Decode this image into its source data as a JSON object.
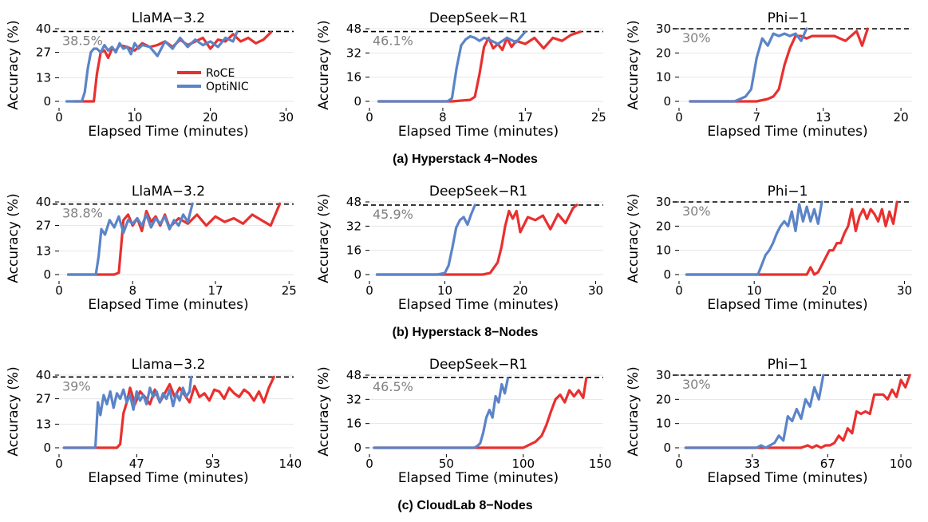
{
  "colors": {
    "roce": "#e8302f",
    "optinic": "#5b84c8",
    "target_line": "#000000",
    "target_label": "#808080",
    "grid": "#e6e6e6"
  },
  "legend": [
    "RoCE",
    "OptiNIC"
  ],
  "captions": [
    "(a) Hyperstack 4−Nodes",
    "(b) Hyperstack 8−Nodes",
    "(c) CloudLab 8−Nodes"
  ],
  "chart_data": [
    {
      "type": "line",
      "row": 0,
      "col": 0,
      "title": "LlaMA−3.2",
      "xlabel": "Elapsed Time (minutes)",
      "ylabel": "Accuracy (%)",
      "xlim": [
        0,
        31
      ],
      "ylim": [
        0,
        40
      ],
      "xticks": [
        0,
        10,
        20,
        30
      ],
      "yticks": [
        0,
        13,
        27,
        40
      ],
      "target": 38.5,
      "target_label": "38.5%",
      "series": [
        {
          "name": "RoCE",
          "x": [
            2,
            4,
            4.6,
            5,
            5.5,
            6,
            6.5,
            7,
            7.5,
            8,
            9,
            10,
            11,
            12,
            13,
            14,
            15,
            16,
            17,
            18,
            19,
            20,
            21,
            22,
            23,
            24,
            25,
            26,
            27,
            28
          ],
          "y": [
            0,
            0,
            0,
            15,
            27,
            28,
            24,
            29,
            28,
            31,
            30,
            28,
            32,
            30,
            31,
            33,
            30,
            34,
            31,
            33,
            35,
            29,
            34,
            33,
            37,
            33,
            35,
            32,
            34,
            38
          ]
        },
        {
          "name": "OptiNIC",
          "x": [
            1,
            2,
            3,
            3.4,
            3.8,
            4.2,
            4.6,
            5,
            5.5,
            6,
            6.5,
            7,
            7.5,
            8,
            8.5,
            9,
            9.5,
            10,
            10.5,
            11,
            12,
            13,
            14,
            15,
            16,
            17,
            18,
            19,
            20,
            21,
            22,
            23,
            23.5
          ],
          "y": [
            0,
            0,
            0,
            5,
            18,
            27,
            29,
            29,
            27,
            31,
            28,
            30,
            27,
            32,
            29,
            30,
            26,
            32,
            29,
            31,
            30,
            25,
            33,
            29,
            35,
            30,
            34,
            31,
            33,
            30,
            35,
            33,
            38
          ]
        }
      ]
    },
    {
      "type": "line",
      "row": 0,
      "col": 1,
      "title": "DeepSeek−R1",
      "xlabel": "Elapsed Time (minutes)",
      "ylabel": "Accuracy (%)",
      "xlim": [
        0,
        25.5
      ],
      "ylim": [
        0,
        48
      ],
      "xticks": [
        0,
        8,
        17,
        25
      ],
      "yticks": [
        0,
        16,
        32,
        48
      ],
      "target": 46.1,
      "target_label": "46.1%",
      "series": [
        {
          "name": "RoCE",
          "x": [
            1,
            6,
            9,
            11,
            11.5,
            12,
            12.5,
            13,
            13.5,
            14,
            14.5,
            15,
            15.5,
            16,
            17,
            18,
            19,
            20,
            21,
            22,
            23
          ],
          "y": [
            0,
            0,
            0,
            1,
            3,
            18,
            36,
            42,
            35,
            38,
            34,
            42,
            36,
            40,
            38,
            42,
            35,
            42,
            40,
            44,
            46
          ]
        },
        {
          "name": "OptiNIC",
          "x": [
            1,
            4,
            7,
            8.5,
            9,
            9.5,
            10,
            10.5,
            11,
            11.5,
            12,
            12.5,
            13,
            14,
            15,
            16,
            17
          ],
          "y": [
            0,
            0,
            0,
            0,
            2,
            22,
            37,
            41,
            43,
            42,
            40,
            42,
            41,
            38,
            42,
            39,
            46
          ]
        }
      ]
    },
    {
      "type": "line",
      "row": 0,
      "col": 2,
      "title": "Phi−1",
      "xlabel": "Elapsed Time (minutes)",
      "ylabel": "Accuracy (%)",
      "xlim": [
        0,
        21
      ],
      "ylim": [
        0,
        30
      ],
      "xticks": [
        0,
        7,
        13,
        20
      ],
      "yticks": [
        0,
        10,
        20,
        30
      ],
      "target": 30,
      "target_label": "30%",
      "series": [
        {
          "name": "RoCE",
          "x": [
            1,
            3,
            5,
            6,
            7,
            8,
            8.5,
            9,
            9.5,
            10,
            10.5,
            11,
            11.5,
            12,
            13,
            14,
            15,
            16,
            16.5,
            17
          ],
          "y": [
            0,
            0,
            0,
            0,
            0,
            1,
            2,
            5,
            15,
            22,
            27,
            27,
            26,
            27,
            27,
            27,
            25,
            29,
            23,
            30
          ]
        },
        {
          "name": "OptiNIC",
          "x": [
            1,
            3,
            5,
            5.5,
            6,
            6.5,
            7,
            7.5,
            8,
            8.5,
            9,
            9.5,
            10,
            10.5,
            11,
            11.5
          ],
          "y": [
            0,
            0,
            0,
            1,
            2,
            5,
            18,
            26,
            23,
            28,
            27,
            28,
            27,
            28,
            25,
            30
          ]
        }
      ]
    },
    {
      "type": "line",
      "row": 1,
      "col": 0,
      "title": "LlaMA−3.2",
      "xlabel": "Elapsed Time (minutes)",
      "ylabel": "Accuracy (%)",
      "xlim": [
        0,
        25.5
      ],
      "ylim": [
        0,
        40
      ],
      "xticks": [
        0,
        8,
        17,
        25
      ],
      "yticks": [
        0,
        13,
        27,
        40
      ],
      "target": 38.8,
      "target_label": "38.8%",
      "series": [
        {
          "name": "RoCE",
          "x": [
            1,
            4,
            6,
            6.5,
            7,
            7.5,
            8,
            8.5,
            9,
            9.5,
            10,
            10.5,
            11,
            11.5,
            12,
            13,
            14,
            15,
            16,
            17,
            18,
            19,
            20,
            21,
            22,
            23,
            24
          ],
          "y": [
            0,
            0,
            0,
            1,
            30,
            33,
            27,
            31,
            24,
            35,
            29,
            32,
            27,
            33,
            26,
            31,
            28,
            33,
            27,
            32,
            29,
            31,
            28,
            33,
            30,
            27,
            39
          ]
        },
        {
          "name": "OptiNIC",
          "x": [
            1,
            3,
            4,
            4.3,
            4.6,
            5,
            5.5,
            6,
            6.5,
            7,
            7.5,
            8,
            8.5,
            9,
            9.5,
            10,
            10.5,
            11,
            11.5,
            12,
            12.5,
            13,
            13.5,
            14,
            14.5
          ],
          "y": [
            0,
            0,
            0,
            10,
            25,
            22,
            30,
            26,
            32,
            23,
            30,
            28,
            31,
            27,
            33,
            26,
            31,
            28,
            32,
            25,
            30,
            27,
            33,
            29,
            39
          ]
        }
      ]
    },
    {
      "type": "line",
      "row": 1,
      "col": 1,
      "title": "DeepSeek−R1",
      "xlabel": "Elapsed Time (minutes)",
      "ylabel": "Accuracy (%)",
      "xlim": [
        0,
        31
      ],
      "ylim": [
        0,
        48
      ],
      "xticks": [
        0,
        10,
        20,
        30
      ],
      "yticks": [
        0,
        16,
        32,
        48
      ],
      "target": 45.9,
      "target_label": "45.9%",
      "series": [
        {
          "name": "RoCE",
          "x": [
            1,
            10,
            15,
            16,
            17,
            17.5,
            18,
            18.5,
            19,
            19.5,
            20,
            21,
            22,
            23,
            24,
            25,
            26,
            27,
            27.5
          ],
          "y": [
            0,
            0,
            0,
            1,
            8,
            18,
            32,
            42,
            37,
            42,
            28,
            38,
            36,
            39,
            30,
            40,
            34,
            44,
            46
          ]
        },
        {
          "name": "OptiNIC",
          "x": [
            1,
            5,
            9,
            10,
            10.5,
            11,
            11.5,
            12,
            12.5,
            13,
            13.5,
            14
          ],
          "y": [
            0,
            0,
            0,
            1,
            6,
            18,
            31,
            36,
            38,
            33,
            40,
            46
          ]
        }
      ]
    },
    {
      "type": "line",
      "row": 1,
      "col": 2,
      "title": "Phi−1",
      "xlabel": "Elapsed Time (minutes)",
      "ylabel": "Accuracy (%)",
      "xlim": [
        0,
        31
      ],
      "ylim": [
        0,
        30
      ],
      "xticks": [
        0,
        10,
        20,
        30
      ],
      "yticks": [
        0,
        10,
        20,
        30
      ],
      "target": 30,
      "target_label": "30%",
      "series": [
        {
          "name": "RoCE",
          "x": [
            1,
            10,
            17,
            17.5,
            18,
            18.5,
            19,
            19.5,
            20,
            20.5,
            21,
            21.5,
            22,
            22.5,
            23,
            23.5,
            24,
            24.5,
            25,
            25.5,
            26,
            26.5,
            27,
            27.5,
            28,
            28.5,
            29
          ],
          "y": [
            0,
            0,
            0,
            3,
            0,
            1,
            4,
            7,
            10,
            10,
            13,
            13,
            17,
            20,
            27,
            18,
            24,
            27,
            23,
            27,
            25,
            22,
            27,
            20,
            26,
            21,
            30
          ]
        },
        {
          "name": "OptiNIC",
          "x": [
            1,
            5,
            10,
            10.5,
            11,
            11.5,
            12,
            12.5,
            13,
            13.5,
            14,
            14.5,
            15,
            15.5,
            16,
            16.5,
            17,
            17.5,
            18,
            18.5,
            19
          ],
          "y": [
            0,
            0,
            0,
            0,
            4,
            8,
            10,
            13,
            17,
            20,
            22,
            20,
            26,
            18,
            29,
            22,
            28,
            22,
            27,
            21,
            30
          ]
        }
      ]
    },
    {
      "type": "line",
      "row": 2,
      "col": 0,
      "title": "Llama−3.2",
      "xlabel": "Elapsed Time (minutes)",
      "ylabel": "Accuracy (%)",
      "xlim": [
        0,
        142
      ],
      "ylim": [
        0,
        40
      ],
      "xticks": [
        0,
        47,
        93,
        140
      ],
      "yticks": [
        0,
        13,
        27,
        40
      ],
      "target": 39,
      "target_label": "39%",
      "series": [
        {
          "name": "RoCE",
          "x": [
            3,
            20,
            35,
            37,
            39,
            41,
            43,
            46,
            49,
            52,
            55,
            58,
            61,
            64,
            67,
            70,
            73,
            76,
            79,
            82,
            85,
            88,
            91,
            94,
            97,
            100,
            103,
            106,
            109,
            112,
            115,
            118,
            121,
            124,
            127,
            130
          ],
          "y": [
            0,
            0,
            0,
            2,
            19,
            25,
            33,
            24,
            31,
            28,
            24,
            32,
            25,
            30,
            35,
            28,
            33,
            29,
            25,
            34,
            28,
            30,
            26,
            32,
            31,
            27,
            33,
            30,
            28,
            32,
            30,
            26,
            31,
            25,
            33,
            39
          ]
        },
        {
          "name": "OptiNIC",
          "x": [
            3,
            10,
            22,
            23.5,
            25,
            27,
            29,
            31,
            33,
            35,
            37,
            39,
            41,
            43,
            45,
            47,
            49,
            51,
            53,
            55,
            57,
            59,
            61,
            63,
            65,
            67,
            69,
            71,
            73,
            75,
            77,
            79,
            80
          ],
          "y": [
            0,
            0,
            0,
            25,
            18,
            29,
            24,
            31,
            22,
            30,
            27,
            32,
            25,
            29,
            21,
            31,
            26,
            29,
            24,
            33,
            28,
            31,
            25,
            30,
            27,
            32,
            23,
            30,
            26,
            33,
            28,
            31,
            39
          ]
        }
      ]
    },
    {
      "type": "line",
      "row": 2,
      "col": 1,
      "title": "DeepSeek−R1",
      "xlabel": "Elapsed Time (minutes)",
      "ylabel": "Accuracy (%)",
      "xlim": [
        0,
        152
      ],
      "ylim": [
        0,
        48
      ],
      "xticks": [
        0,
        50,
        100,
        150
      ],
      "yticks": [
        0,
        16,
        32,
        48
      ],
      "target": 46.5,
      "target_label": "46.5%",
      "series": [
        {
          "name": "RoCE",
          "x": [
            3,
            50,
            95,
            100,
            104,
            108,
            112,
            115,
            118,
            121,
            124,
            127,
            130,
            133,
            136,
            139,
            141
          ],
          "y": [
            0,
            0,
            0,
            0,
            2,
            4,
            8,
            15,
            24,
            32,
            35,
            30,
            38,
            34,
            38,
            33,
            46
          ]
        },
        {
          "name": "OptiNIC",
          "x": [
            3,
            40,
            68,
            70,
            72,
            74,
            76,
            78,
            80,
            82,
            84,
            86,
            88,
            90
          ],
          "y": [
            0,
            0,
            0,
            1,
            3,
            10,
            20,
            25,
            20,
            34,
            30,
            42,
            36,
            46
          ]
        }
      ]
    },
    {
      "type": "line",
      "row": 2,
      "col": 2,
      "title": "Phi−1",
      "xlabel": "Elapsed Time (minutes)",
      "ylabel": "Accuracy (%)",
      "xlim": [
        0,
        105
      ],
      "ylim": [
        0,
        30
      ],
      "xticks": [
        0,
        33,
        67,
        100
      ],
      "yticks": [
        0,
        10,
        20,
        30
      ],
      "target": 30,
      "target_label": "30%",
      "series": [
        {
          "name": "RoCE",
          "x": [
            3,
            30,
            50,
            55,
            58,
            60,
            62,
            64,
            66,
            68,
            70,
            72,
            74,
            76,
            78,
            80,
            82,
            84,
            86,
            88,
            90,
            92,
            94,
            96,
            98,
            100,
            102,
            104
          ],
          "y": [
            0,
            0,
            0,
            0,
            1,
            0,
            1,
            0,
            1,
            1,
            2,
            5,
            3,
            8,
            6,
            15,
            14,
            15,
            14,
            22,
            22,
            22,
            20,
            24,
            21,
            28,
            25,
            30
          ]
        },
        {
          "name": "OptiNIC",
          "x": [
            3,
            20,
            35,
            37,
            39,
            41,
            43,
            45,
            47,
            49,
            51,
            53,
            55,
            57,
            59,
            61,
            63,
            65
          ],
          "y": [
            0,
            0,
            0,
            1,
            0,
            1,
            2,
            5,
            3,
            13,
            11,
            16,
            12,
            20,
            17,
            25,
            20,
            30
          ]
        }
      ]
    }
  ]
}
